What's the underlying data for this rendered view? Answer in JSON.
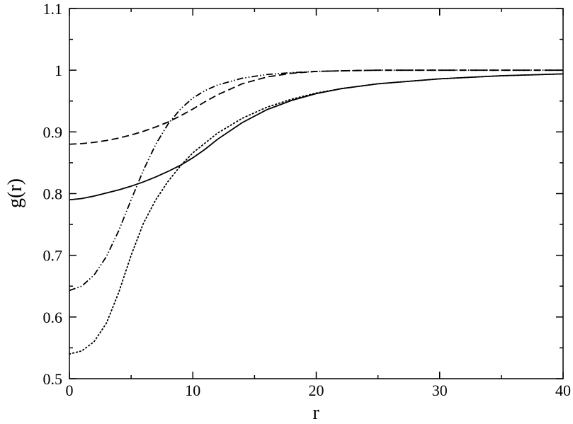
{
  "chart_data": {
    "type": "line",
    "x_label": "r",
    "y_label": "g(r)",
    "x": [
      0,
      1,
      2,
      3,
      4,
      5,
      6,
      7,
      8,
      9,
      10,
      11,
      12,
      14,
      16,
      18,
      20,
      22,
      25,
      30,
      35,
      40
    ],
    "series": [
      {
        "color": "#000000",
        "dash": "solid",
        "values": [
          0.79,
          0.792,
          0.796,
          0.801,
          0.806,
          0.812,
          0.819,
          0.827,
          0.836,
          0.846,
          0.858,
          0.872,
          0.888,
          0.915,
          0.936,
          0.951,
          0.962,
          0.97,
          0.978,
          0.986,
          0.991,
          0.994
        ]
      },
      {
        "color": "#000000",
        "dash": "dotted",
        "values": [
          0.54,
          0.545,
          0.56,
          0.59,
          0.64,
          0.7,
          0.752,
          0.79,
          0.82,
          0.845,
          0.866,
          0.882,
          0.898,
          0.922,
          0.94,
          0.953,
          0.963,
          0.97,
          0.978,
          0.986,
          0.991,
          0.994
        ]
      },
      {
        "color": "#000000",
        "dash": "dashed",
        "values": [
          0.88,
          0.881,
          0.883,
          0.886,
          0.89,
          0.895,
          0.901,
          0.908,
          0.916,
          0.926,
          0.937,
          0.949,
          0.96,
          0.978,
          0.989,
          0.995,
          0.998,
          0.999,
          1.0,
          1.0,
          1.0,
          1.0
        ]
      },
      {
        "color": "#000000",
        "dash": "dash-dot-dot",
        "values": [
          0.643,
          0.65,
          0.668,
          0.698,
          0.74,
          0.79,
          0.838,
          0.88,
          0.913,
          0.937,
          0.955,
          0.967,
          0.976,
          0.987,
          0.993,
          0.996,
          0.998,
          0.999,
          1.0,
          1.0,
          1.0,
          1.0
        ]
      }
    ],
    "xlim": [
      0,
      40
    ],
    "ylim": [
      0.5,
      1.1
    ],
    "xticks": [
      0,
      10,
      20,
      30,
      40
    ],
    "yticks": [
      0.5,
      0.6,
      0.7,
      0.8,
      0.9,
      1,
      1.1
    ],
    "xminorticks": [
      5,
      15,
      25,
      35
    ],
    "yminorticks": [
      0.55,
      0.65,
      0.75,
      0.85,
      0.95,
      1.05
    ],
    "grid": false
  }
}
